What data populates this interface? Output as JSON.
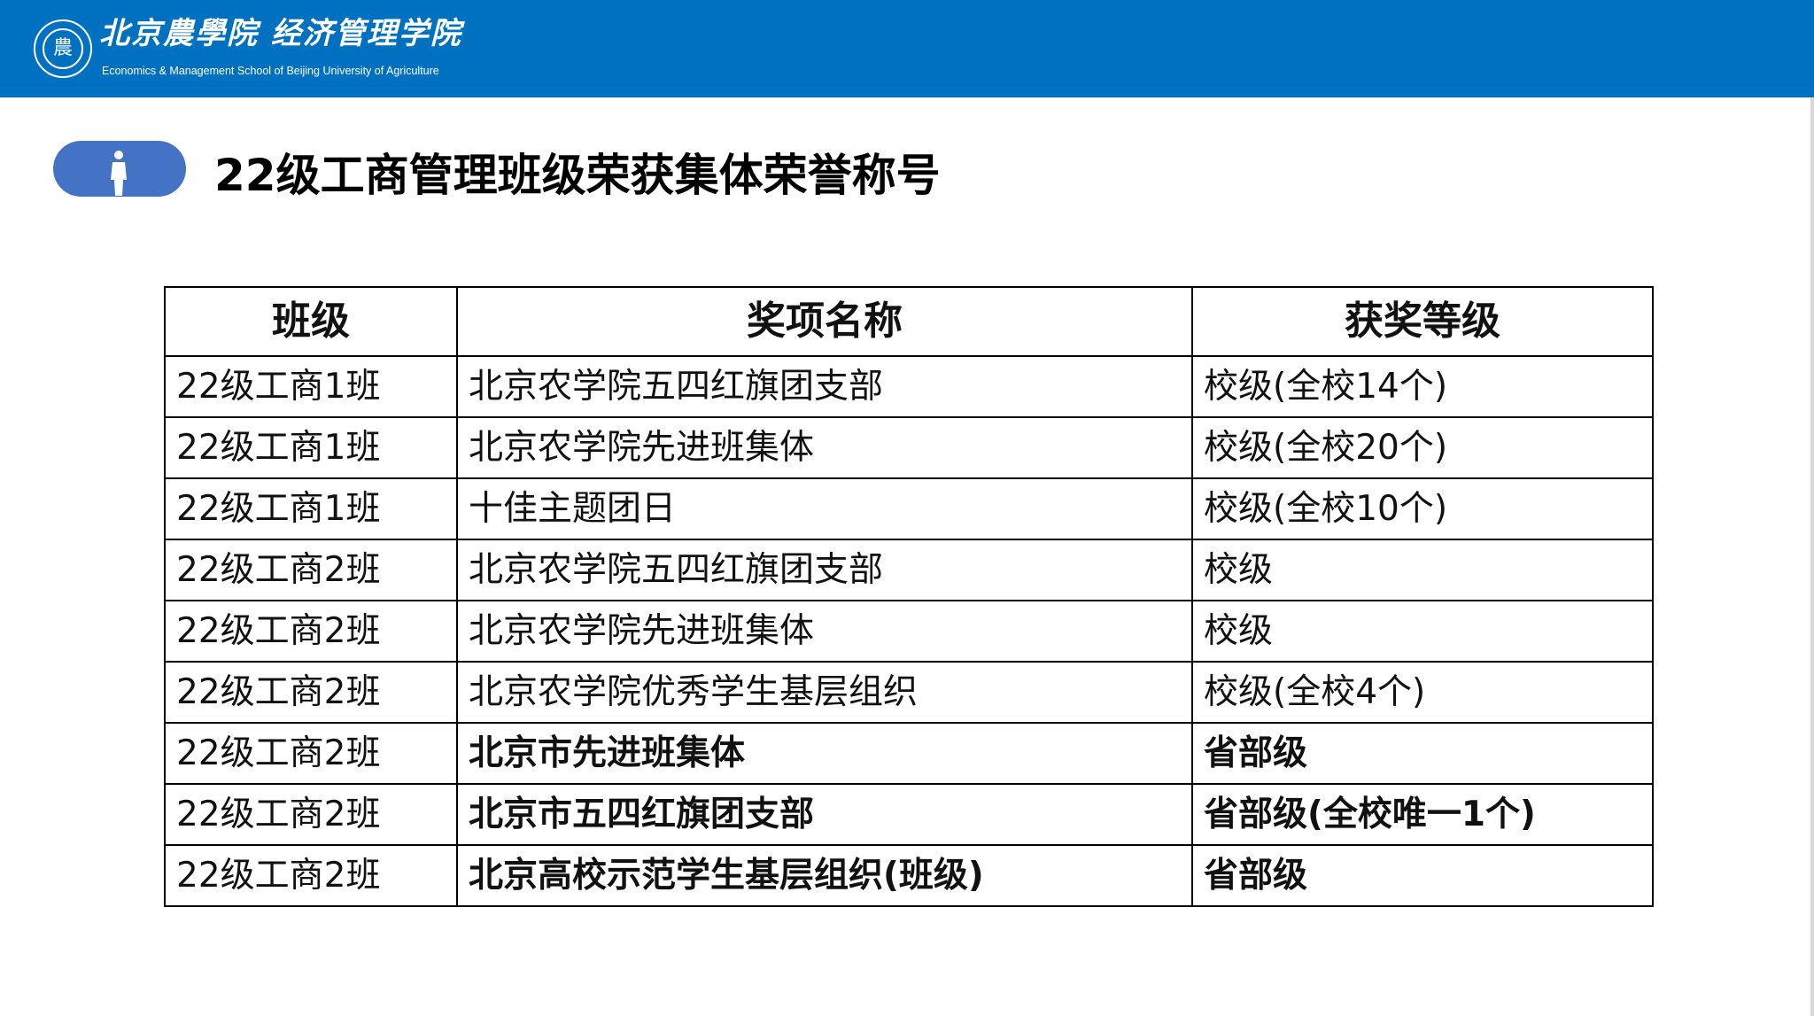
{
  "header": {
    "logo_seal_text": "農",
    "school_name_cn": "北京農學院 经济管理学院",
    "school_name_en": "Economics & Management School of Beijing University of Agriculture",
    "bg_color": "#0070C0"
  },
  "page_title": "22级工商管理班级荣获集体荣誉称号",
  "title_icon": "person-icon",
  "table": {
    "headers": [
      "班级",
      "奖项名称",
      "获奖等级"
    ],
    "rows": [
      {
        "class": "22级工商1班",
        "award": "北京农学院五四红旗团支部",
        "level": "校级(全校14个)",
        "bold": false
      },
      {
        "class": "22级工商1班",
        "award": "北京农学院先进班集体",
        "level": "校级(全校20个)",
        "bold": false
      },
      {
        "class": "22级工商1班",
        "award": "十佳主题团日",
        "level": "校级(全校10个)",
        "bold": false
      },
      {
        "class": "22级工商2班",
        "award": "北京农学院五四红旗团支部",
        "level": "校级",
        "bold": false
      },
      {
        "class": "22级工商2班",
        "award": "北京农学院先进班集体",
        "level": "校级",
        "bold": false
      },
      {
        "class": "22级工商2班",
        "award": "北京农学院优秀学生基层组织",
        "level": "校级(全校4个)",
        "bold": false
      },
      {
        "class": "22级工商2班",
        "award": "北京市先进班集体",
        "level": "省部级",
        "bold": true
      },
      {
        "class": "22级工商2班",
        "award": "北京市五四红旗团支部",
        "level": "省部级(全校唯一1个)",
        "bold": true
      },
      {
        "class": "22级工商2班",
        "award": "北京高校示范学生基层组织(班级)",
        "level": "省部级",
        "bold": true
      }
    ]
  }
}
